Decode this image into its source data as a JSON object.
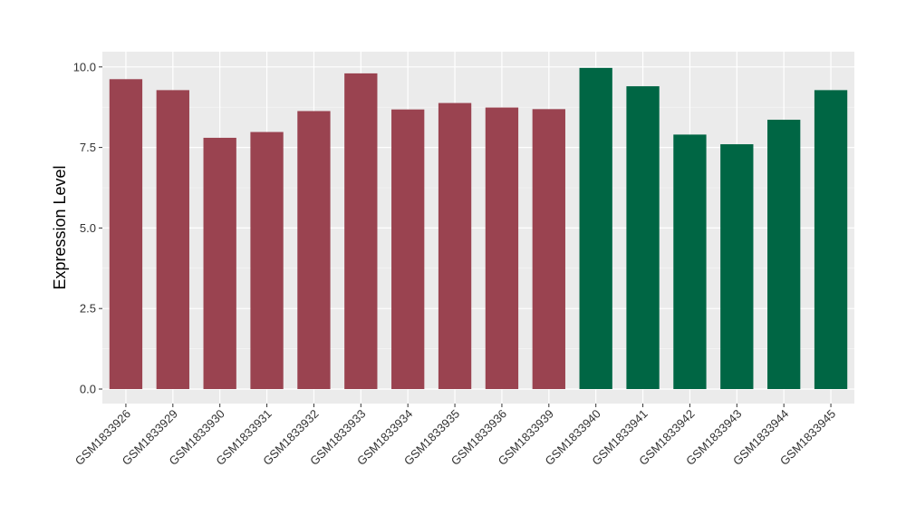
{
  "chart_data": {
    "type": "bar",
    "title": "",
    "xlabel": "",
    "ylabel": "Expression Level",
    "ylim": [
      0,
      10.5
    ],
    "yticks": [
      "0.0",
      "2.5",
      "5.0",
      "7.5",
      "10.0"
    ],
    "grid": true,
    "categories": [
      "GSM1833926",
      "GSM1833929",
      "GSM1833930",
      "GSM1833931",
      "GSM1833932",
      "GSM1833933",
      "GSM1833934",
      "GSM1833935",
      "GSM1833936",
      "GSM1833939",
      "GSM1833940",
      "GSM1833941",
      "GSM1833942",
      "GSM1833943",
      "GSM1833944",
      "GSM1833945"
    ],
    "values": [
      9.62,
      9.28,
      7.8,
      7.98,
      8.63,
      9.8,
      8.68,
      8.88,
      8.74,
      8.69,
      9.97,
      9.4,
      7.9,
      7.6,
      8.36,
      9.28
    ],
    "bar_colors": [
      "#9a4350",
      "#9a4350",
      "#9a4350",
      "#9a4350",
      "#9a4350",
      "#9a4350",
      "#9a4350",
      "#9a4350",
      "#9a4350",
      "#9a4350",
      "#006644",
      "#006644",
      "#006644",
      "#006644",
      "#006644",
      "#006644"
    ]
  },
  "colors": {
    "panel_background": "#ebebeb",
    "grid_major": "#ffffff",
    "group_a": "#9a4350",
    "group_b": "#006644"
  }
}
